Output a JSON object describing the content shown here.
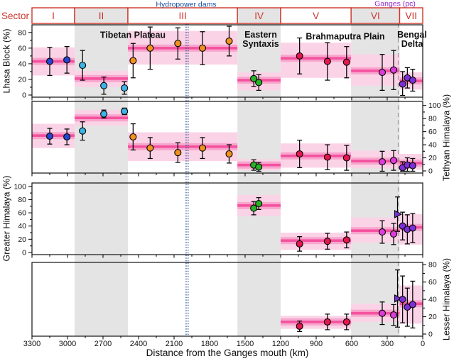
{
  "figure_labels": {
    "sector_label": "Sector",
    "hydropower_label": "Hydropower dams",
    "ganges_label": "Ganges (pc)",
    "x_title": "Distance from the Ganges mouth (km)",
    "y_titles": [
      "Lhasa Block (%)",
      "Tethyan Himalaya (%)",
      "Greater Himalaya (%)",
      "Lesser Himalaya (%)"
    ],
    "region_labels": {
      "tibetan_plateau": "Tibetan Plateau",
      "eastern_syntaxis": "Eastern\nSyntaxis",
      "brahmaputra_plain": "Brahmaputra Plain",
      "bengal_delta": "Bengal\nDelta"
    },
    "colors": {
      "sector_border": "#cc352b",
      "band_line": "#f4519e",
      "band_strip": "#f7a6cd",
      "band_box": "#fbd3e6",
      "shaded_band": "#e4e4e4",
      "dam_line": "#35589c",
      "dam_text": "#1a4fa0",
      "ganges_text": "#9229c9",
      "ganges_dash": "#999999",
      "axis": "#111111"
    }
  },
  "chart_data": {
    "type": "scatter",
    "x_axis": {
      "title": "Distance from the Ganges mouth (km)",
      "range_km": [
        3300,
        0
      ],
      "reversed": true,
      "major_ticks": [
        3300,
        3000,
        2700,
        2400,
        2100,
        1800,
        1500,
        1200,
        900,
        600,
        300,
        0
      ],
      "minor_tick_step": 150
    },
    "vertical_markers": {
      "hydropower_dams_km": 1990,
      "ganges_pc_km": 207
    },
    "sectors": [
      {
        "name": "I",
        "from_km": 3300,
        "to_km": 2940,
        "shaded": false,
        "marker_color": "#2546cf"
      },
      {
        "name": "II",
        "from_km": 2940,
        "to_km": 2490,
        "shaded": true,
        "marker_color": "#3cb4e6"
      },
      {
        "name": "III",
        "from_km": 2490,
        "to_km": 1565,
        "shaded": false,
        "marker_color": "#f0921e"
      },
      {
        "name": "IV",
        "from_km": 1565,
        "to_km": 1200,
        "shaded": true,
        "marker_color": "#28b228"
      },
      {
        "name": "V",
        "from_km": 1200,
        "to_km": 605,
        "shaded": false,
        "marker_color": "#e4174e"
      },
      {
        "name": "VI",
        "from_km": 605,
        "to_km": 195,
        "shaded": true,
        "marker_color": "#dd3ddd"
      },
      {
        "name": "VII",
        "from_km": 195,
        "to_km": 0,
        "shaded": false,
        "marker_color": "#7c2fd6"
      }
    ],
    "panels": [
      {
        "ylabel": "Lhasa Block (%)",
        "axis_side": "left",
        "ylim": [
          0,
          88
        ],
        "yticks": [
          0,
          20,
          40,
          60,
          80
        ],
        "minor_ytick_step": 10,
        "bands": [
          {
            "s": "I",
            "lo": 25,
            "hi": 61,
            "mid": 43
          },
          {
            "s": "II",
            "lo": 10,
            "hi": 31,
            "mid": 21
          },
          {
            "s": "III",
            "lo": 39,
            "hi": 82,
            "mid": 60
          },
          {
            "s": "IV",
            "lo": 6,
            "hi": 29,
            "mid": 19
          },
          {
            "s": "V",
            "lo": 22,
            "hi": 67,
            "mid": 47
          },
          {
            "s": "VI",
            "lo": 12,
            "hi": 52,
            "mid": 31
          },
          {
            "s": "VII",
            "lo": 7,
            "hi": 29,
            "mid": 18
          }
        ],
        "points": [
          {
            "km": 3150,
            "v": 43,
            "e": 18,
            "s": "I"
          },
          {
            "km": 3005,
            "v": 45,
            "e": 17,
            "s": "I"
          },
          {
            "km": 2873,
            "v": 38,
            "e": 19,
            "s": "II"
          },
          {
            "km": 2693,
            "v": 12,
            "e": 11,
            "s": "II"
          },
          {
            "km": 2519,
            "v": 9,
            "e": 8,
            "s": "II"
          },
          {
            "km": 2446,
            "v": 44,
            "e": 22,
            "s": "III"
          },
          {
            "km": 2302,
            "v": 60,
            "e": 27,
            "s": "III"
          },
          {
            "km": 2068,
            "v": 66,
            "e": 20,
            "s": "III"
          },
          {
            "km": 1860,
            "v": 60,
            "e": 21,
            "s": "III"
          },
          {
            "km": 1635,
            "v": 69,
            "e": 19,
            "s": "III"
          },
          {
            "km": 1427,
            "v": 21,
            "e": 10,
            "s": "IV"
          },
          {
            "km": 1385,
            "v": 16,
            "e": 10,
            "s": "IV"
          },
          {
            "km": 1040,
            "v": 50,
            "e": 23,
            "s": "V"
          },
          {
            "km": 805,
            "v": 43,
            "e": 24,
            "s": "V"
          },
          {
            "km": 643,
            "v": 42,
            "e": 20,
            "s": "V"
          },
          {
            "km": 342,
            "v": 29,
            "e": 23,
            "s": "VI"
          },
          {
            "km": 246,
            "v": 32,
            "e": 25,
            "s": "VI"
          },
          {
            "km": 170,
            "v": 14,
            "e": 16,
            "s": "VII"
          },
          {
            "km": 130,
            "v": 22,
            "e": 13,
            "s": "VII"
          },
          {
            "km": 85,
            "v": 19,
            "e": 14,
            "s": "VII"
          }
        ]
      },
      {
        "ylabel": "Tethyan Himalaya (%)",
        "axis_side": "right",
        "ylim": [
          0,
          104
        ],
        "yticks": [
          0,
          20,
          40,
          60,
          80,
          100
        ],
        "minor_ytick_step": 10,
        "bands": [
          {
            "s": "I",
            "lo": 35,
            "hi": 72,
            "mid": 54
          },
          {
            "s": "II",
            "lo": 69,
            "hi": 93,
            "mid": 81
          },
          {
            "s": "III",
            "lo": 15,
            "hi": 59,
            "mid": 37
          },
          {
            "s": "IV",
            "lo": 1,
            "hi": 18,
            "mid": 9
          },
          {
            "s": "V",
            "lo": 5,
            "hi": 42,
            "mid": 23
          },
          {
            "s": "VI",
            "lo": 4,
            "hi": 31,
            "mid": 15
          },
          {
            "s": "VII",
            "lo": 2,
            "hi": 26,
            "mid": 12
          }
        ],
        "points": [
          {
            "km": 3150,
            "v": 53,
            "e": 12,
            "s": "I"
          },
          {
            "km": 3005,
            "v": 52,
            "e": 12,
            "s": "I"
          },
          {
            "km": 2873,
            "v": 61,
            "e": 14,
            "s": "II"
          },
          {
            "km": 2693,
            "v": 87,
            "e": 6,
            "s": "II"
          },
          {
            "km": 2519,
            "v": 91,
            "e": 5,
            "s": "II"
          },
          {
            "km": 2446,
            "v": 52,
            "e": 20,
            "s": "III"
          },
          {
            "km": 2302,
            "v": 35,
            "e": 16,
            "s": "III"
          },
          {
            "km": 2068,
            "v": 28,
            "e": 15,
            "s": "III"
          },
          {
            "km": 1860,
            "v": 35,
            "e": 16,
            "s": "III"
          },
          {
            "km": 1635,
            "v": 26,
            "e": 14,
            "s": "III"
          },
          {
            "km": 1427,
            "v": 9,
            "e": 8,
            "s": "IV"
          },
          {
            "km": 1385,
            "v": 6,
            "e": 7,
            "s": "IV"
          },
          {
            "km": 1040,
            "v": 26,
            "e": 21,
            "s": "V"
          },
          {
            "km": 805,
            "v": 21,
            "e": 19,
            "s": "V"
          },
          {
            "km": 643,
            "v": 20,
            "e": 19,
            "s": "V"
          },
          {
            "km": 342,
            "v": 14,
            "e": 16,
            "s": "VI"
          },
          {
            "km": 246,
            "v": 16,
            "e": 15,
            "s": "VI"
          },
          {
            "km": 170,
            "v": 5,
            "e": 9,
            "s": "VII"
          },
          {
            "km": 130,
            "v": 9,
            "e": 11,
            "s": "VII"
          },
          {
            "km": 85,
            "v": 8,
            "e": 11,
            "s": "VII"
          }
        ]
      },
      {
        "ylabel": "Greater Himalaya (%)",
        "axis_side": "left",
        "ylim": [
          0,
          103
        ],
        "yticks": [
          0,
          20,
          40,
          60,
          80,
          100
        ],
        "minor_ytick_step": 10,
        "bands": [
          {
            "s": "IV",
            "lo": 55,
            "hi": 87,
            "mid": 71
          },
          {
            "s": "V",
            "lo": 4,
            "hi": 30,
            "mid": 18
          },
          {
            "s": "VI",
            "lo": 15,
            "hi": 53,
            "mid": 33
          },
          {
            "s": "VII",
            "lo": 12,
            "hi": 58,
            "mid": 38
          }
        ],
        "points": [
          {
            "km": 1427,
            "v": 67,
            "e": 10,
            "s": "IV"
          },
          {
            "km": 1385,
            "v": 74,
            "e": 9,
            "s": "IV"
          },
          {
            "km": 1040,
            "v": 13,
            "e": 11,
            "s": "V"
          },
          {
            "km": 805,
            "v": 17,
            "e": 12,
            "s": "V"
          },
          {
            "km": 643,
            "v": 19,
            "e": 12,
            "s": "V"
          },
          {
            "km": 342,
            "v": 31,
            "e": 17,
            "s": "VI"
          },
          {
            "km": 246,
            "v": 28,
            "e": 16,
            "s": "VI"
          },
          {
            "km": 213,
            "v": 58,
            "e": 26,
            "s": "VII",
            "marker": "triangle",
            "label": "Ganges (pc)"
          },
          {
            "km": 170,
            "v": 40,
            "e": 21,
            "s": "VII"
          },
          {
            "km": 130,
            "v": 35,
            "e": 22,
            "s": "VII"
          },
          {
            "km": 85,
            "v": 37,
            "e": 22,
            "s": "VII"
          }
        ]
      },
      {
        "ylabel": "Lesser Himalaya (%)",
        "axis_side": "right",
        "ylim": [
          0,
          81
        ],
        "yticks": [
          0,
          20,
          40,
          60,
          80
        ],
        "minor_ytick_step": 10,
        "bands": [
          {
            "s": "V",
            "lo": 6,
            "hi": 21,
            "mid": 14
          },
          {
            "s": "VI",
            "lo": 14,
            "hi": 35,
            "mid": 24
          },
          {
            "s": "VII",
            "lo": 12,
            "hi": 56,
            "mid": 35
          }
        ],
        "points": [
          {
            "km": 1040,
            "v": 9,
            "e": 6,
            "s": "V"
          },
          {
            "km": 805,
            "v": 14,
            "e": 9,
            "s": "V"
          },
          {
            "km": 643,
            "v": 14,
            "e": 9,
            "s": "V"
          },
          {
            "km": 342,
            "v": 24,
            "e": 13,
            "s": "VI"
          },
          {
            "km": 246,
            "v": 22,
            "e": 12,
            "s": "VI"
          },
          {
            "km": 213,
            "v": 41,
            "e": 33,
            "s": "VII",
            "marker": "triangle",
            "label": "Ganges (pc)"
          },
          {
            "km": 170,
            "v": 40,
            "e": 27,
            "s": "VII"
          },
          {
            "km": 130,
            "v": 31,
            "e": 22,
            "s": "VII"
          },
          {
            "km": 85,
            "v": 34,
            "e": 27,
            "s": "VII"
          }
        ]
      }
    ]
  }
}
